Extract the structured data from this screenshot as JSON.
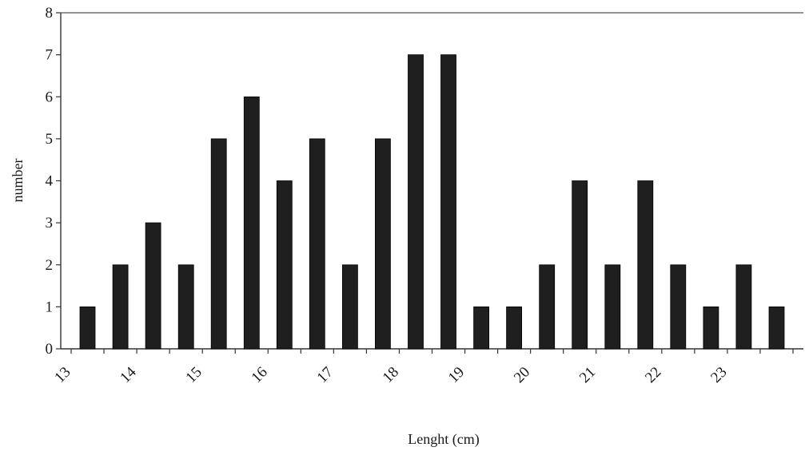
{
  "chart_data": {
    "type": "bar",
    "title": "",
    "xlabel": "Lenght (cm)",
    "ylabel": "number",
    "ylim": [
      0,
      8
    ],
    "yticks": [
      0,
      1,
      2,
      3,
      4,
      5,
      6,
      7,
      8
    ],
    "xlim": [
      13,
      24
    ],
    "xticks": [
      13,
      14,
      15,
      16,
      17,
      18,
      19,
      20,
      21,
      22,
      23
    ],
    "bar_color": "#1f1f1f",
    "grid": false,
    "legend": "none",
    "x": [
      13.25,
      13.75,
      14.25,
      14.75,
      15.25,
      15.75,
      16.25,
      16.75,
      17.25,
      17.75,
      18.25,
      18.75,
      19.25,
      19.75,
      20.25,
      20.75,
      21.25,
      21.75,
      22.25,
      22.75,
      23.25,
      23.75
    ],
    "values": [
      1,
      2,
      3,
      2,
      5,
      6,
      4,
      5,
      2,
      5,
      7,
      7,
      1,
      1,
      2,
      4,
      2,
      4,
      2,
      1,
      2,
      1
    ]
  }
}
